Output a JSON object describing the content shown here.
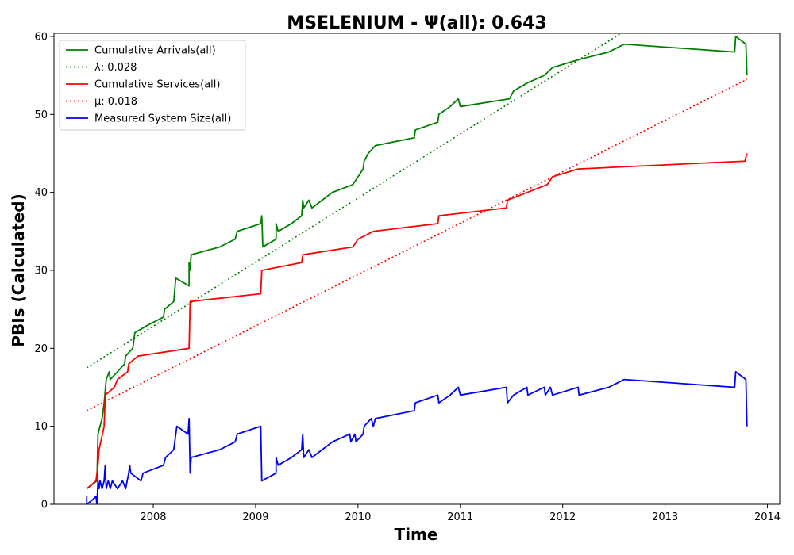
{
  "chart_data": {
    "type": "line",
    "title": "MSELENIUM -  Ψ(all): 0.643",
    "xlabel": "Time",
    "ylabel": "PBIs (Calculated)",
    "xlim": [
      2007.03,
      2014.12
    ],
    "ylim": [
      0,
      60.4
    ],
    "xticks": [
      2008,
      2009,
      2010,
      2011,
      2012,
      2013,
      2014
    ],
    "yticks": [
      0,
      10,
      20,
      30,
      40,
      50,
      60
    ],
    "grid": false,
    "legend_position": "top-left",
    "series": [
      {
        "name": "Cumulative Arrivals(all)",
        "color": "#008000",
        "style": "solid",
        "points": [
          [
            2007.35,
            2
          ],
          [
            2007.45,
            3
          ],
          [
            2007.46,
            9
          ],
          [
            2007.5,
            11
          ],
          [
            2007.52,
            13
          ],
          [
            2007.54,
            16
          ],
          [
            2007.57,
            17
          ],
          [
            2007.58,
            16
          ],
          [
            2007.65,
            17
          ],
          [
            2007.72,
            18
          ],
          [
            2007.73,
            19
          ],
          [
            2007.8,
            20
          ],
          [
            2007.82,
            22
          ],
          [
            2007.95,
            23
          ],
          [
            2008.1,
            24
          ],
          [
            2008.11,
            25
          ],
          [
            2008.2,
            26
          ],
          [
            2008.22,
            29
          ],
          [
            2008.35,
            28
          ],
          [
            2008.35,
            31
          ],
          [
            2008.36,
            30
          ],
          [
            2008.37,
            32
          ],
          [
            2008.65,
            33
          ],
          [
            2008.8,
            34
          ],
          [
            2008.82,
            35
          ],
          [
            2009.05,
            36
          ],
          [
            2009.06,
            37
          ],
          [
            2009.07,
            33
          ],
          [
            2009.2,
            34
          ],
          [
            2009.2,
            36
          ],
          [
            2009.22,
            35
          ],
          [
            2009.35,
            36
          ],
          [
            2009.45,
            37
          ],
          [
            2009.46,
            39
          ],
          [
            2009.47,
            38
          ],
          [
            2009.52,
            39
          ],
          [
            2009.55,
            38
          ],
          [
            2009.75,
            40
          ],
          [
            2009.95,
            41
          ],
          [
            2010.0,
            42
          ],
          [
            2010.05,
            43
          ],
          [
            2010.06,
            44
          ],
          [
            2010.1,
            45
          ],
          [
            2010.17,
            46
          ],
          [
            2010.55,
            47
          ],
          [
            2010.56,
            48
          ],
          [
            2010.78,
            49
          ],
          [
            2010.79,
            50
          ],
          [
            2010.9,
            51
          ],
          [
            2010.98,
            52
          ],
          [
            2011.0,
            51
          ],
          [
            2011.48,
            52
          ],
          [
            2011.52,
            53
          ],
          [
            2011.65,
            54
          ],
          [
            2011.82,
            55
          ],
          [
            2011.9,
            56
          ],
          [
            2012.15,
            57
          ],
          [
            2012.45,
            58
          ],
          [
            2012.6,
            59
          ],
          [
            2013.68,
            58
          ],
          [
            2013.69,
            60
          ],
          [
            2013.79,
            59
          ],
          [
            2013.8,
            55
          ]
        ]
      },
      {
        "name": "λ: 0.028",
        "color": "#008000",
        "style": "dotted",
        "points": [
          [
            2007.35,
            17.5
          ],
          [
            2013.8,
            70.5
          ]
        ]
      },
      {
        "name": "Cumulative Services(all)",
        "color": "#ff0000",
        "style": "solid",
        "points": [
          [
            2007.35,
            2
          ],
          [
            2007.44,
            3
          ],
          [
            2007.46,
            5
          ],
          [
            2007.47,
            7
          ],
          [
            2007.52,
            10
          ],
          [
            2007.53,
            14
          ],
          [
            2007.62,
            15
          ],
          [
            2007.65,
            16
          ],
          [
            2007.75,
            17
          ],
          [
            2007.76,
            18
          ],
          [
            2007.85,
            19
          ],
          [
            2008.35,
            20
          ],
          [
            2008.36,
            26
          ],
          [
            2009.05,
            27
          ],
          [
            2009.06,
            30
          ],
          [
            2009.45,
            31
          ],
          [
            2009.46,
            32
          ],
          [
            2009.95,
            33
          ],
          [
            2010.0,
            34
          ],
          [
            2010.15,
            35
          ],
          [
            2010.78,
            36
          ],
          [
            2010.79,
            37
          ],
          [
            2011.45,
            38
          ],
          [
            2011.46,
            39
          ],
          [
            2011.85,
            41
          ],
          [
            2011.9,
            42
          ],
          [
            2012.15,
            43
          ],
          [
            2013.78,
            44
          ],
          [
            2013.8,
            45
          ]
        ]
      },
      {
        "name": "μ: 0.018",
        "color": "#ff0000",
        "style": "dotted",
        "points": [
          [
            2007.35,
            12
          ],
          [
            2013.8,
            54.5
          ]
        ]
      },
      {
        "name": "Measured System Size(all)",
        "color": "#0000ff",
        "style": "solid",
        "points": [
          [
            2007.35,
            1
          ],
          [
            2007.35,
            0
          ],
          [
            2007.4,
            0.5
          ],
          [
            2007.44,
            1
          ],
          [
            2007.45,
            0
          ],
          [
            2007.46,
            3
          ],
          [
            2007.47,
            2
          ],
          [
            2007.48,
            3
          ],
          [
            2007.5,
            2
          ],
          [
            2007.52,
            3
          ],
          [
            2007.53,
            5
          ],
          [
            2007.54,
            2
          ],
          [
            2007.56,
            3
          ],
          [
            2007.58,
            2
          ],
          [
            2007.6,
            3
          ],
          [
            2007.65,
            2
          ],
          [
            2007.7,
            3
          ],
          [
            2007.73,
            2
          ],
          [
            2007.76,
            4
          ],
          [
            2007.77,
            5
          ],
          [
            2007.78,
            4
          ],
          [
            2007.88,
            3
          ],
          [
            2007.9,
            4
          ],
          [
            2008.1,
            5
          ],
          [
            2008.12,
            6
          ],
          [
            2008.2,
            7
          ],
          [
            2008.22,
            9
          ],
          [
            2008.23,
            10
          ],
          [
            2008.34,
            9
          ],
          [
            2008.35,
            11
          ],
          [
            2008.36,
            4
          ],
          [
            2008.37,
            6
          ],
          [
            2008.65,
            7
          ],
          [
            2008.8,
            8
          ],
          [
            2008.82,
            9
          ],
          [
            2009.05,
            10
          ],
          [
            2009.06,
            3
          ],
          [
            2009.2,
            4
          ],
          [
            2009.2,
            6
          ],
          [
            2009.22,
            5
          ],
          [
            2009.35,
            6
          ],
          [
            2009.45,
            7
          ],
          [
            2009.46,
            9
          ],
          [
            2009.47,
            6
          ],
          [
            2009.52,
            7
          ],
          [
            2009.55,
            6
          ],
          [
            2009.75,
            8
          ],
          [
            2009.92,
            9
          ],
          [
            2009.93,
            8
          ],
          [
            2009.97,
            9
          ],
          [
            2009.98,
            8
          ],
          [
            2010.05,
            9
          ],
          [
            2010.06,
            10
          ],
          [
            2010.13,
            11
          ],
          [
            2010.15,
            10
          ],
          [
            2010.17,
            11
          ],
          [
            2010.55,
            12
          ],
          [
            2010.56,
            13
          ],
          [
            2010.78,
            14
          ],
          [
            2010.79,
            13
          ],
          [
            2010.9,
            14
          ],
          [
            2010.98,
            15
          ],
          [
            2011.0,
            14
          ],
          [
            2011.45,
            15
          ],
          [
            2011.46,
            13
          ],
          [
            2011.52,
            14
          ],
          [
            2011.65,
            15
          ],
          [
            2011.66,
            14
          ],
          [
            2011.82,
            15
          ],
          [
            2011.83,
            14
          ],
          [
            2011.88,
            15
          ],
          [
            2011.9,
            14
          ],
          [
            2012.15,
            15
          ],
          [
            2012.16,
            14
          ],
          [
            2012.45,
            15
          ],
          [
            2012.6,
            16
          ],
          [
            2013.68,
            15
          ],
          [
            2013.69,
            17
          ],
          [
            2013.79,
            16
          ],
          [
            2013.8,
            10
          ]
        ]
      }
    ]
  }
}
